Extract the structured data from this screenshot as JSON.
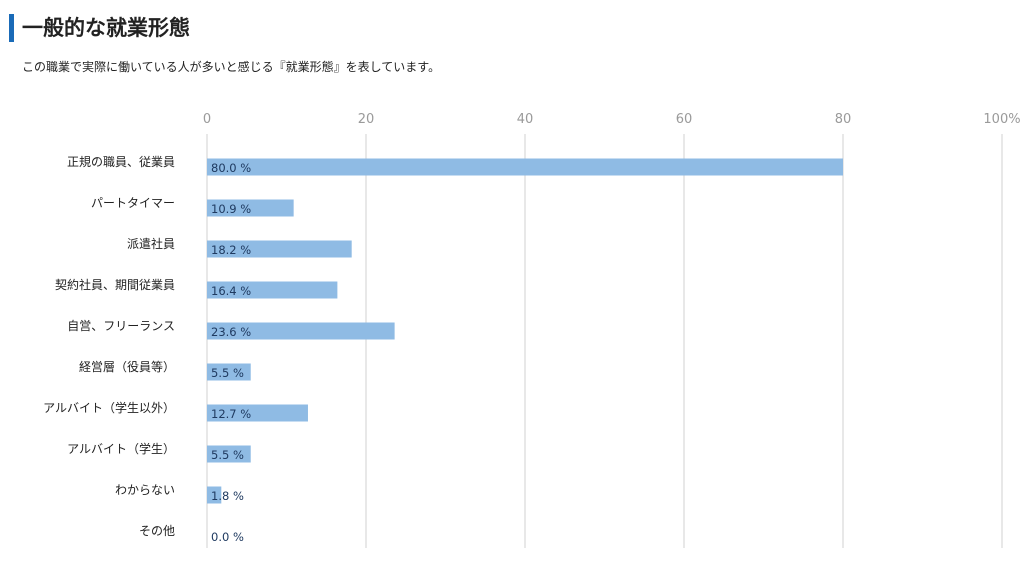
{
  "header": {
    "title": "一般的な就業形態",
    "subtitle": "この職業で実際に働いている人が多いと感じる『就業形態』を表しています。"
  },
  "colors": {
    "accent": "#1a6bb8",
    "bar": "#8fbbe4",
    "grid": "#e0e0e0",
    "tick": "#9a9a9a",
    "value_text": "#1f3a60"
  },
  "chart_data": {
    "type": "bar",
    "orientation": "horizontal",
    "title": "一般的な就業形態",
    "xlim": [
      0,
      100
    ],
    "ticks": [
      "0",
      "20",
      "40",
      "60",
      "80",
      "100%"
    ],
    "tick_values": [
      0,
      20,
      40,
      60,
      80,
      100
    ],
    "grid": true,
    "value_suffix": " %",
    "categories": [
      "正規の職員、従業員",
      "パートタイマー",
      "派遣社員",
      "契約社員、期間従業員",
      "自営、フリーランス",
      "経営層（役員等）",
      "アルバイト（学生以外）",
      "アルバイト（学生）",
      "わからない",
      "その他"
    ],
    "values": [
      80.0,
      10.9,
      18.2,
      16.4,
      23.6,
      5.5,
      12.7,
      5.5,
      1.8,
      0.0
    ],
    "value_labels": [
      "80.0 %",
      "10.9 %",
      "18.2 %",
      "16.4 %",
      "23.6 %",
      "5.5 %",
      "12.7 %",
      "5.5 %",
      "1.8 %",
      "0.0 %"
    ]
  }
}
